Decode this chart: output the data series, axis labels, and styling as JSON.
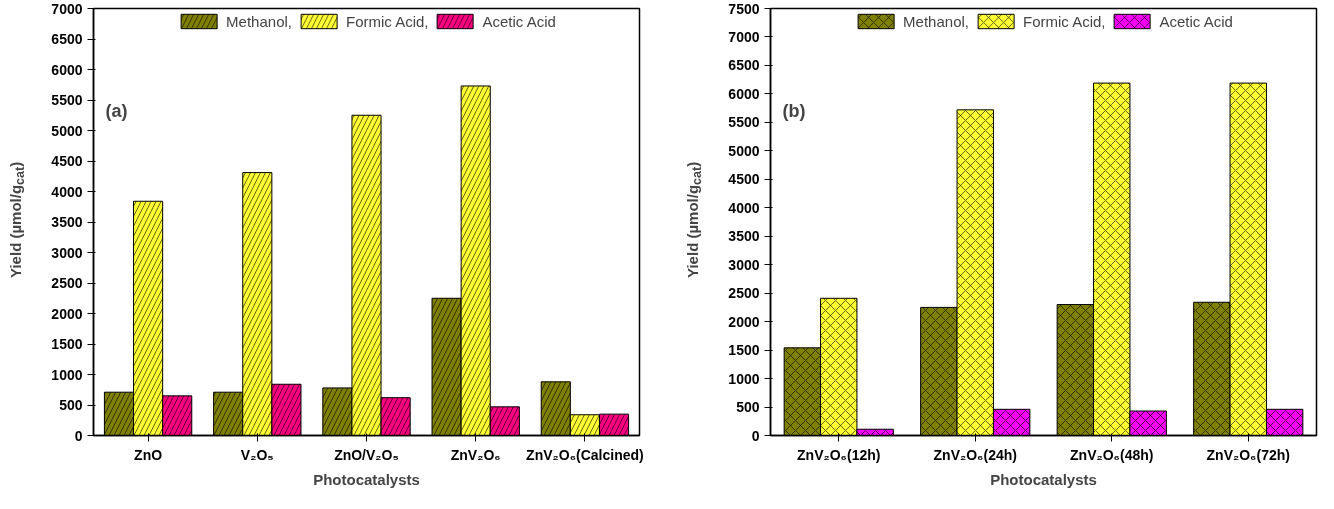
{
  "chart_data": [
    {
      "type": "bar",
      "annotations": [
        "(a)"
      ],
      "xlabel": "Photocatalysts",
      "ylabel": "Yield (µmol/g$_{cat}$)",
      "categories": [
        "ZnO",
        "V₂O₅",
        "ZnO/V₂O₅",
        "ZnV₂O₆",
        "ZnV₂O₆(Calcined)"
      ],
      "series": [
        {
          "name": "Methanol,",
          "color": "#7f7f00",
          "values": [
            710,
            710,
            780,
            2250,
            880
          ]
        },
        {
          "name": "Formic Acid,",
          "color": "#ffff33",
          "values": [
            3840,
            4310,
            5250,
            5730,
            340
          ]
        },
        {
          "name": "Acetic Acid",
          "color": "#ff0080",
          "values": [
            650,
            840,
            620,
            470,
            350
          ]
        }
      ],
      "ylim": [
        0,
        7000
      ],
      "yticks": [
        0,
        500,
        1000,
        1500,
        2000,
        2500,
        3000,
        3500,
        4000,
        4500,
        5000,
        5500,
        6000,
        6500,
        7000
      ],
      "grid": false,
      "legend": "top"
    },
    {
      "type": "bar",
      "annotations": [
        "(b)"
      ],
      "xlabel": "Photocatalysts",
      "ylabel": "Yield (µmol/g$_{cat}$)",
      "categories": [
        "ZnV₂O₆(12h)",
        "ZnV₂O₆(24h)",
        "ZnV₂O₆(48h)",
        "ZnV₂O₆(72h)"
      ],
      "series": [
        {
          "name": "Methanol,",
          "color": "#7f7f00",
          "values": [
            1540,
            2250,
            2300,
            2340
          ]
        },
        {
          "name": "Formic Acid,",
          "color": "#ffff33",
          "values": [
            2410,
            5720,
            6190,
            6190
          ]
        },
        {
          "name": "Acetic Acid",
          "color": "#ff00ff",
          "values": [
            110,
            460,
            430,
            460
          ]
        }
      ],
      "ylim": [
        0,
        7500
      ],
      "yticks": [
        0,
        500,
        1000,
        1500,
        2000,
        2500,
        3000,
        3500,
        4000,
        4500,
        5000,
        5500,
        6000,
        6500,
        7000,
        7500
      ],
      "grid": false,
      "legend": "top"
    }
  ]
}
